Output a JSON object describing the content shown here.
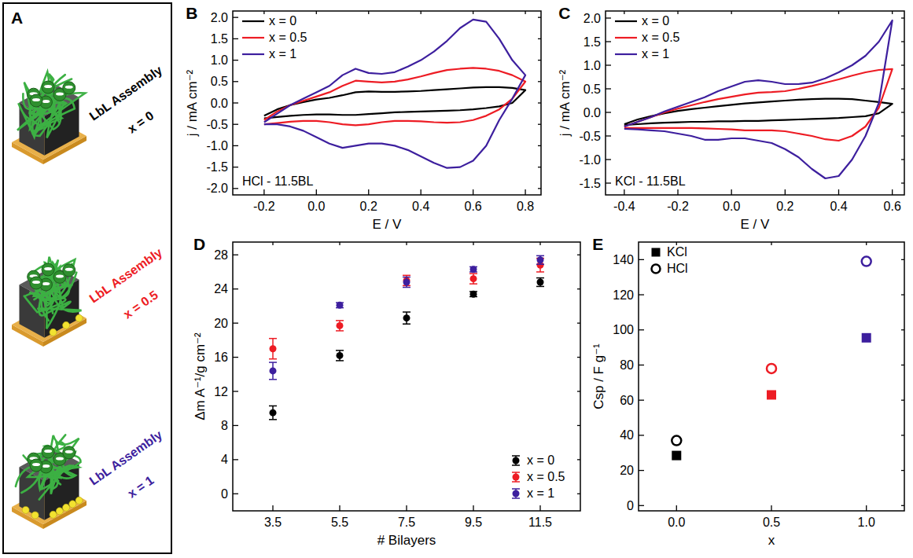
{
  "schematic": {
    "label": "A",
    "assemblies": [
      {
        "title": "LbL Assembly",
        "x_label": "x = 0",
        "color": "#000000"
      },
      {
        "title": "LbL Assembly",
        "x_label": "x = 0.5",
        "color": "#ed1c24"
      },
      {
        "title": "LbL Assembly",
        "x_label": "x = 1",
        "color": "#3d1f9e"
      }
    ]
  },
  "chart_data": [
    {
      "type": "line",
      "panel": "B",
      "x_label": "E / V",
      "y_label": "j / mA cm⁻²",
      "annotation": "HCl - 11.5BL",
      "legend": "upper left",
      "x": [
        -0.2,
        -0.15,
        -0.1,
        -0.05,
        0,
        0.05,
        0.1,
        0.15,
        0.2,
        0.25,
        0.3,
        0.35,
        0.4,
        0.45,
        0.5,
        0.55,
        0.6,
        0.65,
        0.7,
        0.75,
        0.8,
        0.75,
        0.7,
        0.65,
        0.6,
        0.55,
        0.5,
        0.45,
        0.4,
        0.35,
        0.3,
        0.25,
        0.2,
        0.15,
        0.1,
        0.05,
        0,
        -0.05,
        -0.1,
        -0.15,
        -0.2
      ],
      "series": [
        {
          "name": "x = 0",
          "color": "#000000",
          "values": [
            -0.3,
            -0.15,
            -0.05,
            0.02,
            0.08,
            0.12,
            0.18,
            0.25,
            0.27,
            0.26,
            0.26,
            0.27,
            0.28,
            0.3,
            0.32,
            0.34,
            0.36,
            0.37,
            0.37,
            0.35,
            0.3,
            0.0,
            -0.08,
            -0.12,
            -0.15,
            -0.17,
            -0.18,
            -0.19,
            -0.2,
            -0.21,
            -0.22,
            -0.24,
            -0.26,
            -0.28,
            -0.28,
            -0.27,
            -0.27,
            -0.28,
            -0.3,
            -0.33,
            -0.36
          ]
        },
        {
          "name": "x = 0.5",
          "color": "#ed1c24",
          "values": [
            -0.4,
            -0.2,
            -0.05,
            0.05,
            0.15,
            0.25,
            0.4,
            0.52,
            0.5,
            0.48,
            0.5,
            0.55,
            0.62,
            0.7,
            0.77,
            0.8,
            0.82,
            0.8,
            0.75,
            0.65,
            0.5,
            0.1,
            -0.15,
            -0.3,
            -0.4,
            -0.45,
            -0.46,
            -0.45,
            -0.43,
            -0.42,
            -0.42,
            -0.45,
            -0.5,
            -0.52,
            -0.5,
            -0.45,
            -0.42,
            -0.42,
            -0.44,
            -0.47,
            -0.5
          ]
        },
        {
          "name": "x = 1",
          "color": "#3d1f9e",
          "values": [
            -0.45,
            -0.25,
            -0.05,
            0.1,
            0.25,
            0.4,
            0.65,
            0.8,
            0.7,
            0.68,
            0.72,
            0.85,
            1.0,
            1.2,
            1.45,
            1.75,
            1.95,
            1.9,
            1.5,
            1.0,
            0.65,
            0.1,
            -0.4,
            -1.0,
            -1.35,
            -1.5,
            -1.52,
            -1.4,
            -1.25,
            -1.1,
            -1.0,
            -0.95,
            -0.95,
            -1.0,
            -1.05,
            -0.95,
            -0.8,
            -0.65,
            -0.55,
            -0.5,
            -0.5
          ]
        }
      ],
      "xlim": [
        -0.32,
        0.86
      ],
      "xticks": [
        -0.2,
        {
          "value": 0,
          "label": "0.0"
        },
        0.2,
        0.4,
        0.6,
        0.8
      ],
      "ylim": [
        -2.15,
        2.15
      ],
      "yticks": [
        {
          "value": -2,
          "label": "-2.0"
        },
        -1.5,
        {
          "value": -1,
          "label": "-1.0"
        },
        -0.5,
        {
          "value": 0,
          "label": "0.0"
        },
        0.5,
        {
          "value": 1,
          "label": "1.0"
        },
        1.5,
        {
          "value": 2,
          "label": "2.0"
        }
      ]
    },
    {
      "type": "line",
      "panel": "C",
      "x_label": "E / V",
      "y_label": "j / mA cm⁻²",
      "annotation": "KCl - 11.5BL",
      "legend": "upper left",
      "x": [
        -0.4,
        -0.35,
        -0.3,
        -0.25,
        -0.2,
        -0.15,
        -0.1,
        -0.05,
        0,
        0.05,
        0.1,
        0.15,
        0.2,
        0.25,
        0.3,
        0.35,
        0.4,
        0.45,
        0.5,
        0.55,
        0.6,
        0.55,
        0.5,
        0.45,
        0.4,
        0.35,
        0.3,
        0.25,
        0.2,
        0.15,
        0.1,
        0.05,
        0,
        -0.05,
        -0.1,
        -0.15,
        -0.2,
        -0.25,
        -0.3,
        -0.35,
        -0.4
      ],
      "series": [
        {
          "name": "x = 0",
          "color": "#000000",
          "values": [
            -0.25,
            -0.15,
            -0.08,
            -0.02,
            0.03,
            0.07,
            0.1,
            0.13,
            0.16,
            0.19,
            0.21,
            0.23,
            0.25,
            0.27,
            0.28,
            0.29,
            0.29,
            0.28,
            0.25,
            0.22,
            0.18,
            -0.02,
            -0.08,
            -0.1,
            -0.12,
            -0.13,
            -0.14,
            -0.15,
            -0.16,
            -0.17,
            -0.18,
            -0.18,
            -0.19,
            -0.19,
            -0.2,
            -0.2,
            -0.21,
            -0.22,
            -0.23,
            -0.25,
            -0.27
          ]
        },
        {
          "name": "x = 0.5",
          "color": "#ed1c24",
          "values": [
            -0.3,
            -0.2,
            -0.1,
            0.0,
            0.08,
            0.15,
            0.22,
            0.28,
            0.33,
            0.38,
            0.42,
            0.43,
            0.45,
            0.5,
            0.56,
            0.63,
            0.7,
            0.78,
            0.85,
            0.9,
            0.92,
            0.1,
            -0.3,
            -0.5,
            -0.6,
            -0.57,
            -0.5,
            -0.45,
            -0.4,
            -0.38,
            -0.38,
            -0.38,
            -0.36,
            -0.35,
            -0.34,
            -0.33,
            -0.33,
            -0.33,
            -0.33,
            -0.33,
            -0.33
          ]
        },
        {
          "name": "x = 1",
          "color": "#3d1f9e",
          "values": [
            -0.3,
            -0.2,
            -0.1,
            0.02,
            0.12,
            0.22,
            0.32,
            0.45,
            0.55,
            0.65,
            0.68,
            0.65,
            0.6,
            0.6,
            0.63,
            0.72,
            0.85,
            1.0,
            1.2,
            1.5,
            1.95,
            0.2,
            -0.5,
            -1.0,
            -1.35,
            -1.4,
            -1.2,
            -0.95,
            -0.78,
            -0.65,
            -0.6,
            -0.55,
            -0.55,
            -0.58,
            -0.58,
            -0.5,
            -0.45,
            -0.4,
            -0.38,
            -0.36,
            -0.35
          ]
        }
      ],
      "xlim": [
        -0.47,
        0.645
      ],
      "xticks": [
        -0.4,
        -0.2,
        {
          "value": 0,
          "label": "0.0"
        },
        0.2,
        0.4,
        0.6
      ],
      "ylim": [
        -1.75,
        2.15
      ],
      "yticks": [
        -1.5,
        {
          "value": -1,
          "label": "-1.0"
        },
        -0.5,
        {
          "value": 0,
          "label": "0.0"
        },
        0.5,
        {
          "value": 1,
          "label": "1.0"
        },
        1.5,
        {
          "value": 2,
          "label": "2.0"
        }
      ]
    },
    {
      "type": "scatter",
      "panel": "D",
      "x_label": "# Bilayers",
      "y_label": "Δm A⁻¹/g cm⁻²",
      "legend": "lower right",
      "x": [
        3.5,
        5.5,
        7.5,
        9.5,
        11.5
      ],
      "series": [
        {
          "name": "x = 0",
          "color": "#000000",
          "marker": "circle",
          "values": [
            9.5,
            16.2,
            20.6,
            23.4,
            24.8
          ],
          "errors": [
            0.8,
            0.6,
            0.7,
            0.3,
            0.5
          ]
        },
        {
          "name": "x = 0.5",
          "color": "#ed1c24",
          "marker": "circle",
          "values": [
            17.0,
            19.7,
            25.0,
            25.2,
            26.8
          ],
          "errors": [
            1.2,
            0.6,
            0.6,
            0.6,
            0.8
          ]
        },
        {
          "name": "x = 1",
          "color": "#3d1f9e",
          "marker": "circle",
          "values": [
            14.4,
            22.1,
            24.8,
            26.3,
            27.4
          ],
          "errors": [
            1.0,
            0.3,
            0.6,
            0.3,
            0.5
          ]
        }
      ],
      "xlim": [
        2.3,
        12.7
      ],
      "xticks": [
        3.5,
        5.5,
        7.5,
        9.5,
        11.5
      ],
      "ylim": [
        -2,
        29.5
      ],
      "yticks": [
        0,
        4,
        8,
        12,
        16,
        20,
        24,
        28
      ]
    },
    {
      "type": "scatter",
      "panel": "E",
      "x_label": "x",
      "y_label": "Csp / F g⁻¹",
      "legend": "upper left",
      "x": [
        0,
        0.5,
        1
      ],
      "series": [
        {
          "name": "KCl",
          "color": "#000000",
          "marker": "square",
          "colors": [
            "#000000",
            "#ed1c24",
            "#3d1f9e"
          ],
          "values": [
            28.5,
            63,
            95.5
          ]
        },
        {
          "name": "HCl",
          "color": "#000000",
          "marker": "open-circle",
          "colors": [
            "#000000",
            "#ed1c24",
            "#3d1f9e"
          ],
          "values": [
            37,
            78,
            139
          ]
        }
      ],
      "xlim": [
        -0.2,
        1.2
      ],
      "xticks": [
        {
          "value": 0,
          "label": "0.0"
        },
        0.5,
        {
          "value": 1,
          "label": "1.0"
        }
      ],
      "ylim": [
        -3,
        150
      ],
      "yticks": [
        0,
        20,
        40,
        60,
        80,
        100,
        120,
        140
      ]
    }
  ]
}
